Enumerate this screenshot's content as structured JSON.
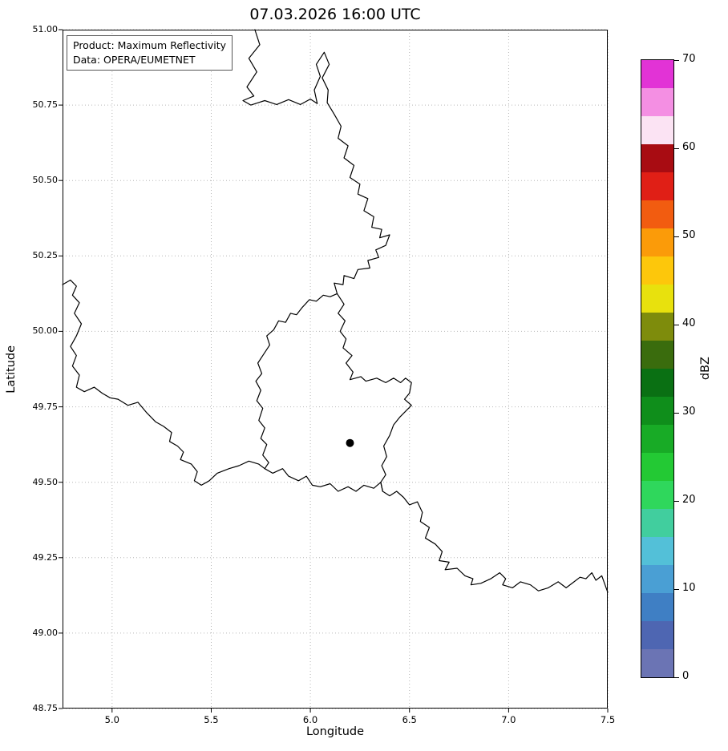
{
  "title": "07.03.2026 16:00 UTC",
  "annotation": {
    "product": "Product: Maximum Reflectivity",
    "source": "Data: OPERA/EUMETNET"
  },
  "axes": {
    "xlabel": "Longitude",
    "ylabel": "Latitude",
    "xlim": [
      4.75,
      7.5
    ],
    "ylim": [
      48.75,
      51.0
    ],
    "xticks": [
      5.0,
      5.5,
      6.0,
      6.5,
      7.0,
      7.5
    ],
    "xtick_labels": [
      "5.0",
      "5.5",
      "6.0",
      "6.5",
      "7.0",
      "7.5"
    ],
    "yticks": [
      48.75,
      49.0,
      49.25,
      49.5,
      49.75,
      50.0,
      50.25,
      50.5,
      50.75,
      51.0
    ],
    "ytick_labels": [
      "48.75",
      "49.00",
      "49.25",
      "49.50",
      "49.75",
      "50.00",
      "50.25",
      "50.50",
      "50.75",
      "51.00"
    ],
    "grid": "dotted"
  },
  "colorbar": {
    "label": "dBZ",
    "min": 0,
    "max": 70,
    "ticks": [
      0,
      10,
      20,
      30,
      40,
      50,
      60,
      70
    ],
    "tick_labels": [
      "0",
      "10",
      "20",
      "30",
      "40",
      "50",
      "60",
      "70"
    ],
    "colors_bottom_to_top": [
      "#6b74b4",
      "#4e66b2",
      "#3f7fc4",
      "#4a9fd4",
      "#53c0d8",
      "#41ce9e",
      "#2fd75c",
      "#23c934",
      "#18ab26",
      "#0f8e1b",
      "#0a7013",
      "#3a6c0d",
      "#7e8c0c",
      "#e8e10d",
      "#fdc70b",
      "#fb9b09",
      "#f25c10",
      "#e01f16",
      "#a80c12",
      "#fbe3f3",
      "#f48fe3",
      "#e233d6"
    ]
  },
  "colors": {
    "border": "#000000",
    "grid": "#b6b6b6",
    "frame": "#000000",
    "marker": "#000000",
    "background": "#ffffff"
  },
  "chart_data": {
    "type": "map",
    "title": "07.03.2026 16:00 UTC",
    "product": "Maximum Reflectivity",
    "data_source": "OPERA/EUMETNET",
    "xlabel": "Longitude",
    "ylabel": "Latitude",
    "xlim": [
      4.75,
      7.5
    ],
    "ylim": [
      48.75,
      51.0
    ],
    "grid": "dotted",
    "colorbar": {
      "label": "dBZ",
      "min": 0,
      "max": 70,
      "ticks": [
        0,
        10,
        20,
        30,
        40,
        50,
        60,
        70
      ]
    },
    "reflectivity_cells": [],
    "radar_marker": {
      "lon": 6.2,
      "lat": 49.63
    },
    "borders": [
      {
        "name": "nl-be-de-lu-fr-border-chain",
        "points": [
          [
            5.72,
            51.0
          ],
          [
            5.745,
            50.95
          ],
          [
            5.69,
            50.905
          ],
          [
            5.73,
            50.86
          ],
          [
            5.68,
            50.81
          ],
          [
            5.715,
            50.78
          ],
          [
            5.66,
            50.765
          ],
          [
            5.7,
            50.75
          ],
          [
            5.77,
            50.765
          ],
          [
            5.83,
            50.752
          ],
          [
            5.89,
            50.768
          ],
          [
            5.95,
            50.752
          ],
          [
            6.0,
            50.77
          ],
          [
            6.035,
            50.755
          ],
          [
            6.02,
            50.8
          ],
          [
            6.05,
            50.845
          ],
          [
            6.03,
            50.885
          ],
          [
            6.07,
            50.925
          ],
          [
            6.095,
            50.885
          ],
          [
            6.06,
            50.84
          ],
          [
            6.09,
            50.8
          ],
          [
            6.085,
            50.758
          ],
          [
            6.12,
            50.72
          ],
          [
            6.155,
            50.68
          ],
          [
            6.14,
            50.64
          ],
          [
            6.19,
            50.615
          ],
          [
            6.17,
            50.575
          ],
          [
            6.22,
            50.55
          ],
          [
            6.2,
            50.51
          ],
          [
            6.25,
            50.488
          ],
          [
            6.24,
            50.455
          ],
          [
            6.29,
            50.44
          ],
          [
            6.27,
            50.4
          ],
          [
            6.32,
            50.38
          ],
          [
            6.31,
            50.345
          ],
          [
            6.36,
            50.338
          ],
          [
            6.35,
            50.31
          ],
          [
            6.4,
            50.32
          ],
          [
            6.38,
            50.285
          ],
          [
            6.33,
            50.27
          ],
          [
            6.345,
            50.245
          ],
          [
            6.29,
            50.235
          ],
          [
            6.3,
            50.21
          ],
          [
            6.24,
            50.205
          ],
          [
            6.22,
            50.175
          ],
          [
            6.17,
            50.185
          ],
          [
            6.165,
            50.155
          ],
          [
            6.12,
            50.16
          ],
          [
            6.135,
            50.125
          ],
          [
            6.17,
            50.09
          ],
          [
            6.14,
            50.06
          ],
          [
            6.175,
            50.035
          ],
          [
            6.15,
            50.0
          ],
          [
            6.18,
            49.975
          ],
          [
            6.165,
            49.945
          ],
          [
            6.21,
            49.92
          ],
          [
            6.18,
            49.895
          ],
          [
            6.215,
            49.865
          ],
          [
            6.2,
            49.84
          ],
          [
            6.255,
            49.85
          ],
          [
            6.28,
            49.835
          ],
          [
            6.335,
            49.845
          ],
          [
            6.38,
            49.83
          ],
          [
            6.42,
            49.845
          ],
          [
            6.455,
            49.83
          ],
          [
            6.48,
            49.845
          ],
          [
            6.51,
            49.83
          ],
          [
            6.5,
            49.795
          ],
          [
            6.475,
            49.775
          ],
          [
            6.51,
            49.755
          ],
          [
            6.48,
            49.735
          ],
          [
            6.45,
            49.715
          ],
          [
            6.42,
            49.69
          ],
          [
            6.4,
            49.655
          ],
          [
            6.37,
            49.62
          ],
          [
            6.385,
            49.585
          ],
          [
            6.36,
            49.555
          ],
          [
            6.38,
            49.525
          ],
          [
            6.355,
            49.5
          ],
          [
            6.365,
            49.47
          ],
          [
            6.4,
            49.455
          ],
          [
            6.435,
            49.47
          ],
          [
            6.47,
            49.45
          ],
          [
            6.5,
            49.425
          ],
          [
            6.54,
            49.435
          ],
          [
            6.565,
            49.4
          ],
          [
            6.555,
            49.37
          ],
          [
            6.6,
            49.35
          ],
          [
            6.58,
            49.315
          ],
          [
            6.63,
            49.295
          ],
          [
            6.665,
            49.27
          ],
          [
            6.65,
            49.24
          ],
          [
            6.7,
            49.235
          ],
          [
            6.68,
            49.21
          ],
          [
            6.74,
            49.215
          ],
          [
            6.78,
            49.19
          ],
          [
            6.82,
            49.18
          ],
          [
            6.81,
            49.16
          ],
          [
            6.86,
            49.165
          ],
          [
            6.91,
            49.18
          ],
          [
            6.955,
            49.2
          ],
          [
            6.985,
            49.18
          ],
          [
            6.97,
            49.16
          ],
          [
            7.02,
            49.15
          ],
          [
            7.06,
            49.17
          ],
          [
            7.11,
            49.16
          ],
          [
            7.15,
            49.14
          ],
          [
            7.2,
            49.15
          ],
          [
            7.25,
            49.17
          ],
          [
            7.29,
            49.15
          ],
          [
            7.33,
            49.17
          ],
          [
            7.36,
            49.185
          ],
          [
            7.39,
            49.18
          ],
          [
            7.42,
            49.2
          ],
          [
            7.44,
            49.175
          ],
          [
            7.47,
            49.19
          ],
          [
            7.5,
            49.135
          ]
        ]
      },
      {
        "name": "luxembourg-west-south-border",
        "points": [
          [
            6.135,
            50.125
          ],
          [
            6.1,
            50.115
          ],
          [
            6.065,
            50.12
          ],
          [
            6.03,
            50.1
          ],
          [
            5.995,
            50.105
          ],
          [
            5.96,
            50.08
          ],
          [
            5.93,
            50.055
          ],
          [
            5.9,
            50.06
          ],
          [
            5.875,
            50.03
          ],
          [
            5.84,
            50.035
          ],
          [
            5.815,
            50.005
          ],
          [
            5.78,
            49.985
          ],
          [
            5.795,
            49.955
          ],
          [
            5.765,
            49.925
          ],
          [
            5.735,
            49.895
          ],
          [
            5.755,
            49.86
          ],
          [
            5.725,
            49.835
          ],
          [
            5.75,
            49.805
          ],
          [
            5.73,
            49.77
          ],
          [
            5.76,
            49.745
          ],
          [
            5.74,
            49.705
          ],
          [
            5.77,
            49.68
          ],
          [
            5.75,
            49.645
          ],
          [
            5.78,
            49.625
          ],
          [
            5.76,
            49.59
          ],
          [
            5.79,
            49.565
          ],
          [
            5.77,
            49.545
          ],
          [
            5.81,
            49.53
          ],
          [
            5.86,
            49.545
          ],
          [
            5.89,
            49.52
          ],
          [
            5.94,
            49.505
          ],
          [
            5.98,
            49.52
          ],
          [
            6.01,
            49.49
          ],
          [
            6.05,
            49.485
          ],
          [
            6.1,
            49.495
          ],
          [
            6.14,
            49.47
          ],
          [
            6.19,
            49.485
          ],
          [
            6.23,
            49.47
          ],
          [
            6.27,
            49.49
          ],
          [
            6.32,
            49.48
          ],
          [
            6.355,
            49.5
          ],
          [
            6.365,
            49.47
          ]
        ]
      },
      {
        "name": "france-belgium-border",
        "points": [
          [
            4.75,
            50.155
          ],
          [
            4.79,
            50.17
          ],
          [
            4.82,
            50.15
          ],
          [
            4.8,
            50.12
          ],
          [
            4.835,
            50.095
          ],
          [
            4.81,
            50.06
          ],
          [
            4.845,
            50.025
          ],
          [
            4.82,
            49.985
          ],
          [
            4.79,
            49.95
          ],
          [
            4.82,
            49.92
          ],
          [
            4.8,
            49.885
          ],
          [
            4.835,
            49.855
          ],
          [
            4.82,
            49.815
          ],
          [
            4.86,
            49.8
          ],
          [
            4.91,
            49.815
          ],
          [
            4.95,
            49.795
          ],
          [
            4.99,
            49.78
          ],
          [
            5.03,
            49.775
          ],
          [
            5.08,
            49.755
          ],
          [
            5.13,
            49.765
          ],
          [
            5.175,
            49.73
          ],
          [
            5.22,
            49.7
          ],
          [
            5.26,
            49.685
          ],
          [
            5.3,
            49.665
          ],
          [
            5.29,
            49.635
          ],
          [
            5.33,
            49.62
          ],
          [
            5.36,
            49.6
          ],
          [
            5.345,
            49.575
          ],
          [
            5.4,
            49.56
          ],
          [
            5.43,
            49.535
          ],
          [
            5.415,
            49.505
          ],
          [
            5.45,
            49.49
          ],
          [
            5.49,
            49.505
          ],
          [
            5.53,
            49.53
          ],
          [
            5.59,
            49.545
          ],
          [
            5.64,
            49.555
          ],
          [
            5.69,
            49.57
          ],
          [
            5.74,
            49.56
          ],
          [
            5.77,
            49.545
          ]
        ]
      }
    ]
  }
}
